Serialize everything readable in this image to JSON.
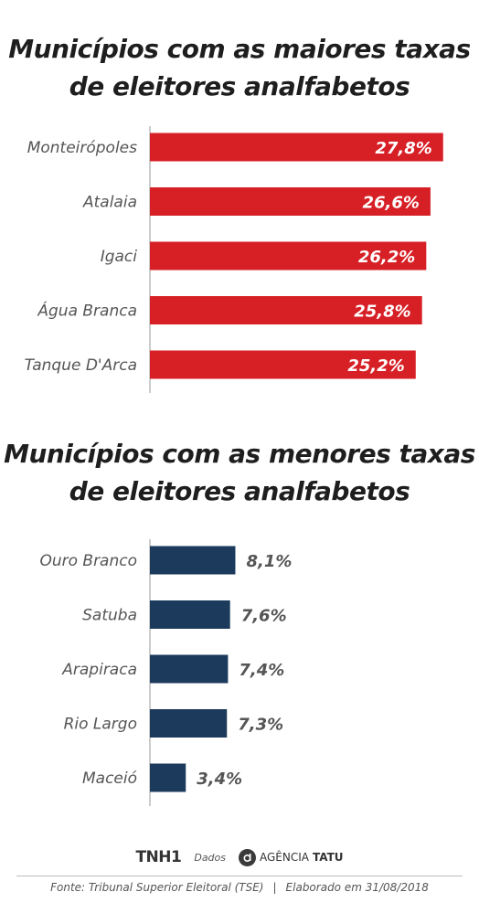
{
  "chart_data": [
    {
      "type": "bar",
      "orientation": "horizontal",
      "title": "Municípios com as maiores taxas de eleitores analfabetos",
      "categories": [
        "Monteirópoles",
        "Atalaia",
        "Igaci",
        "Água Branca",
        "Tanque D'Arca"
      ],
      "values": [
        27.8,
        26.6,
        26.2,
        25.8,
        25.2
      ],
      "value_labels": [
        "27,8%",
        "26,6%",
        "26,2%",
        "25,8%",
        "25,2%"
      ],
      "unit": "%",
      "color": "#d71f26",
      "label_position": "inside",
      "xlim": [
        0,
        28.6
      ]
    },
    {
      "type": "bar",
      "orientation": "horizontal",
      "title": "Municípios com as menores taxas de eleitores analfabetos",
      "categories": [
        "Ouro Branco",
        "Satuba",
        "Arapiraca",
        "Rio Largo",
        "Maceió"
      ],
      "values": [
        8.1,
        7.6,
        7.4,
        7.3,
        3.4
      ],
      "value_labels": [
        "8,1%",
        "7,6%",
        "7,4%",
        "7,3%",
        "3,4%"
      ],
      "unit": "%",
      "color": "#1b3a5c",
      "label_position": "outside",
      "xlim": [
        0,
        28.6
      ]
    }
  ],
  "footer": {
    "brand_tnh1": "TNH1",
    "brand_dados": "Dados",
    "brand_agencia": "AGÊNCIA",
    "brand_tatu": "TATU",
    "source": "Fonte:  Tribunal Superior Eleitoral (TSE)",
    "separator": "|",
    "elaborated": "Elaborado em 31/08/2018"
  }
}
